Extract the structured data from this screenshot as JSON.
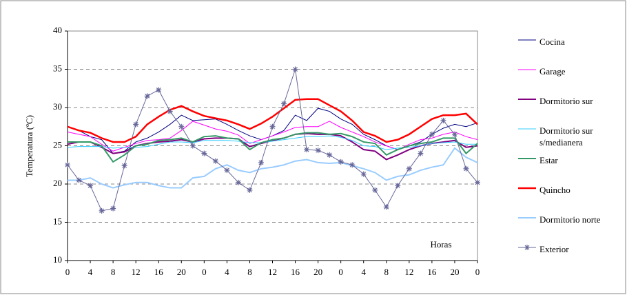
{
  "chart_data": {
    "type": "line",
    "ylabel": "Temperatura (ºC)",
    "annotation": "Horas",
    "x": [
      0,
      2,
      4,
      6,
      8,
      10,
      12,
      14,
      16,
      18,
      20,
      22,
      24,
      26,
      28,
      30,
      32,
      34,
      36,
      38,
      40,
      42,
      44,
      46,
      48,
      50,
      52,
      54,
      56,
      58,
      60,
      62,
      64,
      66,
      68,
      70,
      72
    ],
    "xlim": [
      0,
      72
    ],
    "xticks": [
      0,
      4,
      8,
      12,
      16,
      20,
      {
        "value": 24,
        "label": "0"
      },
      {
        "value": 28,
        "label": "4"
      },
      {
        "value": 32,
        "label": "8"
      },
      {
        "value": 36,
        "label": "12"
      },
      {
        "value": 40,
        "label": "16"
      },
      {
        "value": 44,
        "label": "20"
      },
      {
        "value": 48,
        "label": "0"
      },
      {
        "value": 52,
        "label": "4"
      },
      {
        "value": 56,
        "label": "8"
      },
      {
        "value": 60,
        "label": "12"
      },
      {
        "value": 64,
        "label": "16"
      },
      {
        "value": 68,
        "label": "20"
      },
      {
        "value": 72,
        "label": "0"
      }
    ],
    "ylim": [
      10,
      40
    ],
    "yticks": [
      10,
      15,
      20,
      25,
      30,
      35,
      40
    ],
    "grid": true,
    "series": [
      {
        "name": "Cocina",
        "color": "#000080",
        "line_width": 1,
        "values": [
          27.5,
          27,
          26.2,
          25.8,
          24,
          24.3,
          25.5,
          26,
          26.8,
          27.8,
          29,
          28.3,
          28.4,
          28.5,
          27.8,
          27,
          26.3,
          25.8,
          26.3,
          27,
          29,
          28.3,
          29.9,
          29.5,
          28.5,
          27.8,
          26.5,
          25.8,
          25,
          24.5,
          25,
          25.5,
          26.5,
          27.3,
          27.8,
          27.5,
          28
        ]
      },
      {
        "name": "Garage",
        "color": "#ff00ff",
        "line_width": 1,
        "values": [
          26.8,
          26.5,
          26.2,
          25.2,
          24.3,
          24.8,
          25.3,
          25.7,
          25.8,
          26,
          27,
          28.2,
          27.7,
          27.2,
          26.9,
          26.4,
          25.3,
          25.8,
          26.3,
          26.8,
          27.4,
          27.5,
          27.5,
          28.2,
          27.4,
          26.8,
          26.2,
          25.5,
          25,
          24.5,
          25.2,
          25.8,
          26,
          26.5,
          26.8,
          26.2,
          25.8
        ]
      },
      {
        "name": "Dormitorio sur",
        "color": "#800080",
        "line_width": 2,
        "values": [
          25.2,
          25.5,
          25.5,
          24.8,
          24,
          24.2,
          25,
          25.3,
          25.5,
          25.6,
          25.8,
          25.5,
          25.9,
          26,
          26,
          25.9,
          24.9,
          25.3,
          25.7,
          26,
          26.5,
          26.6,
          26.5,
          26.5,
          26.3,
          25.5,
          24.5,
          24.3,
          23.2,
          23.8,
          24.5,
          25,
          25.3,
          25.5,
          25.7,
          24.8,
          25
        ]
      },
      {
        "name": "Dormitorio sur s/medianera",
        "color": "#33ccff",
        "line_width": 1,
        "values": [
          24.8,
          24.9,
          24.9,
          24.9,
          24.7,
          24.8,
          24.8,
          24.9,
          25.2,
          25.5,
          25.5,
          25.4,
          25.7,
          25.7,
          25.7,
          25.6,
          25.4,
          25.4,
          25.6,
          25.8,
          26,
          26.2,
          26.2,
          26.3,
          26.1,
          25.7,
          25,
          24.9,
          24.5,
          24.7,
          24.8,
          25,
          25.3,
          25.4,
          25.5,
          25.2,
          25.2
        ]
      },
      {
        "name": "Estar",
        "color": "#339966",
        "line_width": 2,
        "values": [
          25.5,
          25.5,
          25.5,
          25,
          22.9,
          23.8,
          25,
          25.2,
          25.7,
          25.8,
          26,
          25.5,
          26.2,
          26.3,
          26,
          25.9,
          24.5,
          25.4,
          25.8,
          26,
          26.5,
          26.7,
          26.7,
          26.5,
          26.6,
          26.2,
          25.5,
          25.3,
          23.8,
          24.5,
          25,
          25.3,
          25.5,
          26,
          26,
          24,
          25.3
        ]
      },
      {
        "name": "Quincho",
        "color": "#ff0000",
        "line_width": 2.5,
        "values": [
          27.5,
          27,
          26.7,
          26,
          25.5,
          25.5,
          26.2,
          27.8,
          28.8,
          29.7,
          30.2,
          29.5,
          28.9,
          28.6,
          28.3,
          27.8,
          27.2,
          27.9,
          28.8,
          29.9,
          31,
          31.1,
          31.1,
          30.3,
          29.5,
          28.3,
          26.8,
          26.3,
          25.5,
          25.8,
          26.5,
          27.5,
          28.5,
          29,
          29,
          29.2,
          27.8
        ]
      },
      {
        "name": "Dormitorio norte",
        "color": "#99ccff",
        "line_width": 2,
        "values": [
          20.5,
          20.5,
          20.8,
          20,
          19.5,
          19.9,
          20.2,
          20.2,
          19.8,
          19.5,
          19.5,
          20.8,
          21,
          22,
          22.5,
          21.8,
          21.5,
          22,
          22.2,
          22.5,
          23,
          23.2,
          22.8,
          22.7,
          22.8,
          22.4,
          22,
          21.5,
          20.5,
          21,
          21.2,
          21.8,
          22.2,
          22.5,
          24.7,
          23.5,
          22.8
        ]
      },
      {
        "name": "Exterior",
        "color": "#666699",
        "line_width": 1,
        "marker": "asterisk",
        "values": [
          22.5,
          20.5,
          19.8,
          16.5,
          16.8,
          22.4,
          27.8,
          31.5,
          32.3,
          29.5,
          27.5,
          25,
          24,
          23,
          21.8,
          20.2,
          19.2,
          22.8,
          27.5,
          30.5,
          35,
          24.5,
          24.4,
          23.8,
          22.9,
          22.5,
          21.3,
          19.2,
          17,
          19.8,
          22,
          24,
          26.5,
          28.3,
          26.5,
          22,
          20.2
        ]
      }
    ]
  }
}
